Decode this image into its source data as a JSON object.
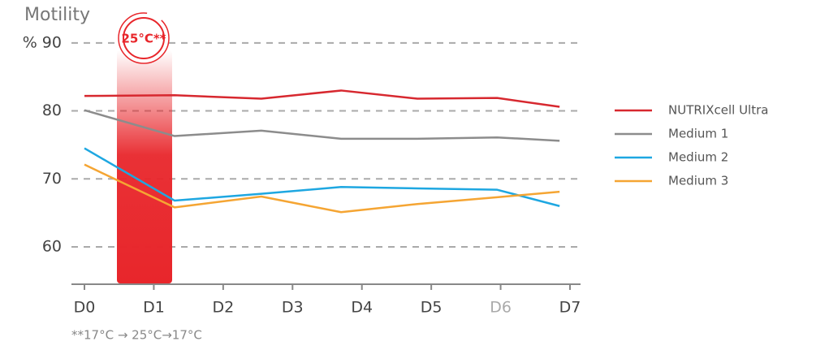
{
  "chart_data": {
    "type": "line",
    "y_label": "Motility",
    "x": [
      0,
      1.3,
      2.55,
      3.7,
      4.8,
      5.95,
      6.85
    ],
    "xlim": [
      0,
      7
    ],
    "xticks": [
      {
        "value": 0,
        "label": "D0"
      },
      {
        "value": 1,
        "label": "D1"
      },
      {
        "value": 2,
        "label": "D2"
      },
      {
        "value": 3,
        "label": "D3"
      },
      {
        "value": 4,
        "label": "D4"
      },
      {
        "value": 5,
        "label": "D5"
      },
      {
        "value": 6,
        "label": "D6"
      },
      {
        "value": 7,
        "label": "D7"
      }
    ],
    "ylim": [
      54.5,
      95
    ],
    "yticks": [
      60,
      70,
      80,
      {
        "value": 90,
        "label": "% 90"
      }
    ],
    "grid": true,
    "legend": "right",
    "series": [
      {
        "name": "NUTRIXcell Ultra",
        "color": "#d7282f",
        "values": [
          82.2,
          82.3,
          81.8,
          83.0,
          81.8,
          81.9,
          80.6
        ]
      },
      {
        "name": "Medium 1",
        "color": "#8c8c8c",
        "values": [
          80.1,
          76.3,
          77.1,
          75.9,
          75.9,
          76.1,
          75.6
        ]
      },
      {
        "name": "Medium 2",
        "color": "#1ea7e1",
        "values": [
          74.5,
          66.8,
          67.8,
          68.8,
          68.6,
          68.4,
          66.0
        ]
      },
      {
        "name": "Medium 3",
        "color": "#f5a533",
        "values": [
          72.1,
          65.8,
          67.4,
          65.1,
          66.3,
          67.3,
          68.1
        ]
      }
    ],
    "annotations": {
      "badge": "25°C**",
      "footnote": "**17°C → 25°C→17°C"
    }
  }
}
